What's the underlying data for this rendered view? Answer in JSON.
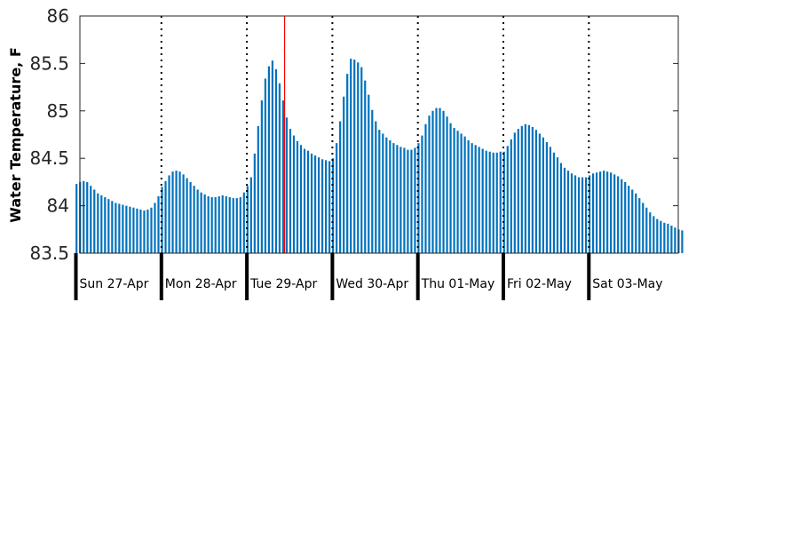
{
  "chart_data": {
    "type": "bar",
    "ylabel": "Water Temperature, F",
    "ylim": [
      83.5,
      86
    ],
    "yticks": [
      "83.5",
      "84",
      "84.5",
      "85",
      "85.5",
      "86"
    ],
    "day_labels": [
      "Sun 27-Apr",
      "Mon 28-Apr",
      "Tue 29-Apr",
      "Wed 30-Apr",
      "Thu 01-May",
      "Fri 02-May",
      "Sat 03-May"
    ],
    "current_time_index": 59,
    "grid": false,
    "bar_color": "#0072BD",
    "marker_color": "#FF0000",
    "values": [
      84.23,
      84.25,
      84.26,
      84.25,
      84.21,
      84.17,
      84.13,
      84.11,
      84.09,
      84.07,
      84.05,
      84.03,
      84.02,
      84.01,
      84.0,
      83.99,
      83.98,
      83.97,
      83.96,
      83.95,
      83.96,
      83.98,
      84.03,
      84.1,
      84.2,
      84.26,
      84.32,
      84.36,
      84.37,
      84.36,
      84.33,
      84.29,
      84.25,
      84.21,
      84.17,
      84.14,
      84.12,
      84.1,
      84.09,
      84.09,
      84.1,
      84.11,
      84.1,
      84.09,
      84.08,
      84.08,
      84.09,
      84.14,
      84.21,
      84.3,
      84.55,
      84.84,
      85.11,
      85.34,
      85.47,
      85.53,
      85.44,
      85.29,
      85.11,
      84.93,
      84.81,
      84.74,
      84.68,
      84.64,
      84.6,
      84.58,
      84.55,
      84.53,
      84.51,
      84.49,
      84.48,
      84.47,
      84.5,
      84.66,
      84.89,
      85.15,
      85.39,
      85.55,
      85.54,
      85.51,
      85.46,
      85.32,
      85.17,
      85.01,
      84.89,
      84.8,
      84.76,
      84.72,
      84.69,
      84.66,
      84.64,
      84.62,
      84.61,
      84.59,
      84.59,
      84.61,
      84.66,
      84.74,
      84.86,
      84.95,
      85.0,
      85.03,
      85.03,
      85.0,
      84.94,
      84.87,
      84.82,
      84.79,
      84.76,
      84.73,
      84.69,
      84.66,
      84.64,
      84.62,
      84.6,
      84.58,
      84.57,
      84.56,
      84.56,
      84.57,
      84.57,
      84.63,
      84.7,
      84.77,
      84.81,
      84.84,
      84.86,
      84.85,
      84.83,
      84.8,
      84.76,
      84.72,
      84.67,
      84.62,
      84.56,
      84.51,
      84.45,
      84.4,
      84.37,
      84.34,
      84.32,
      84.3,
      84.3,
      84.3,
      84.32,
      84.34,
      84.35,
      84.36,
      84.37,
      84.36,
      84.35,
      84.33,
      84.31,
      84.28,
      84.25,
      84.21,
      84.17,
      84.13,
      84.08,
      84.03,
      83.98,
      83.93,
      83.89,
      83.86,
      83.84,
      83.82,
      83.81,
      83.79,
      83.77,
      83.75,
      83.74
    ]
  }
}
